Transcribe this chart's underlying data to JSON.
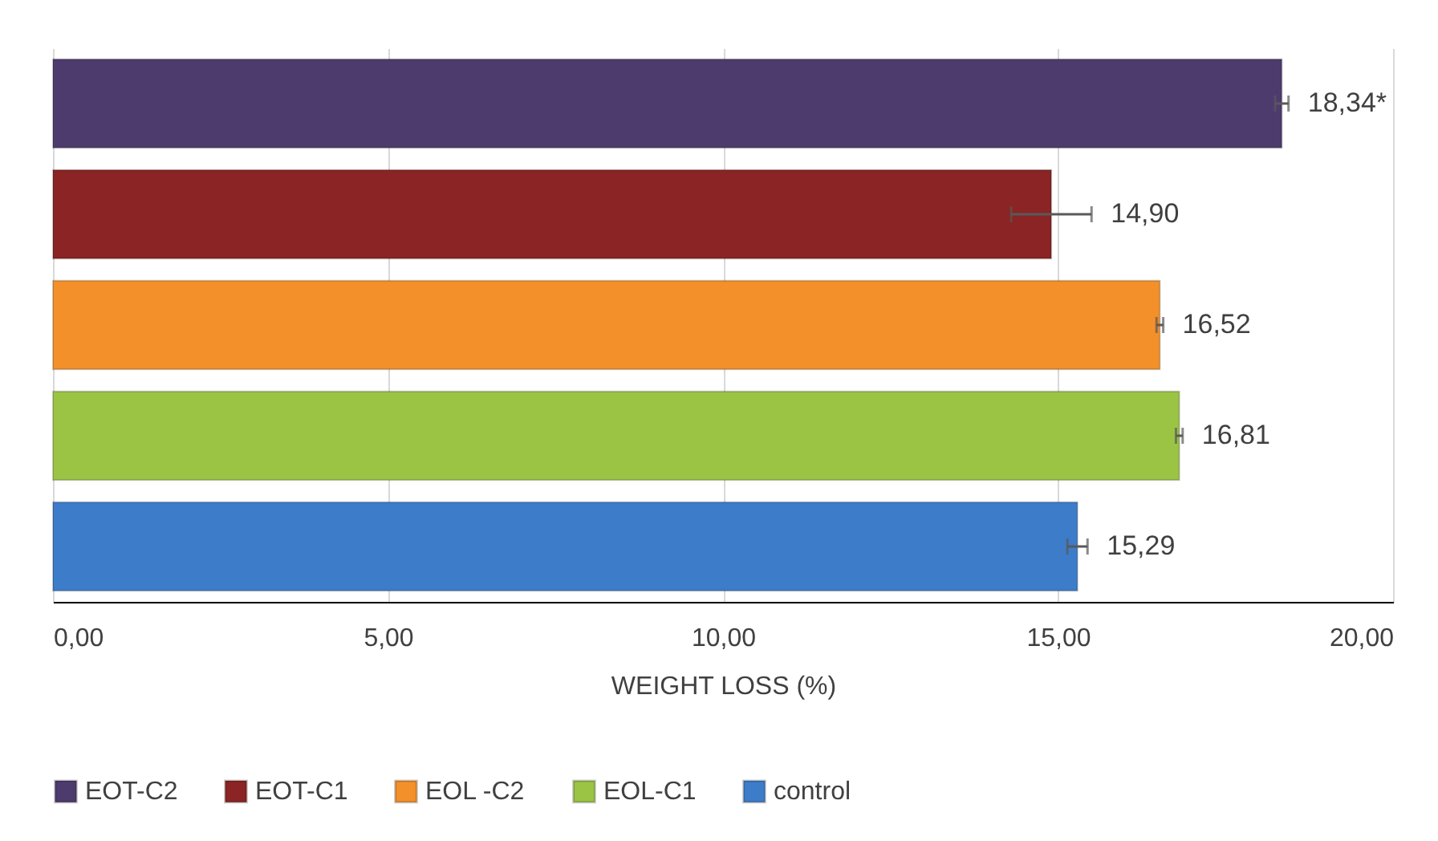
{
  "chart_data": {
    "type": "bar",
    "orientation": "horizontal",
    "xlabel": "WEIGHT LOSS (%)",
    "categories": [
      null
    ],
    "series": [
      {
        "name": "EOT-C2",
        "color": "#4e3b6e",
        "values": [
          18.34
        ],
        "errors": [
          0.1
        ],
        "value_labels": [
          "18,34*"
        ]
      },
      {
        "name": "EOT-C1",
        "color": "#8b2424",
        "values": [
          14.9
        ],
        "errors": [
          0.6
        ],
        "value_labels": [
          "14,90"
        ]
      },
      {
        "name": "EOL -C2",
        "color": "#f4902a",
        "values": [
          16.52
        ],
        "errors": [
          0.05
        ],
        "value_labels": [
          "16,52"
        ]
      },
      {
        "name": "EOL-C1",
        "color": "#9bc444",
        "values": [
          16.81
        ],
        "errors": [
          0.05
        ],
        "value_labels": [
          "16,81"
        ]
      },
      {
        "name": "control",
        "color": "#3d7cc9",
        "values": [
          15.29
        ],
        "errors": [
          0.15
        ],
        "value_labels": [
          "15,29"
        ]
      }
    ],
    "xlim": [
      0,
      20
    ],
    "xticks": [
      {
        "value": 0,
        "label": "0,00"
      },
      {
        "value": 5,
        "label": "5,00"
      },
      {
        "value": 10,
        "label": "10,00"
      },
      {
        "value": 15,
        "label": "15,00"
      },
      {
        "value": 20,
        "label": "20,00"
      }
    ],
    "grid": "x",
    "legend": "bottom"
  }
}
